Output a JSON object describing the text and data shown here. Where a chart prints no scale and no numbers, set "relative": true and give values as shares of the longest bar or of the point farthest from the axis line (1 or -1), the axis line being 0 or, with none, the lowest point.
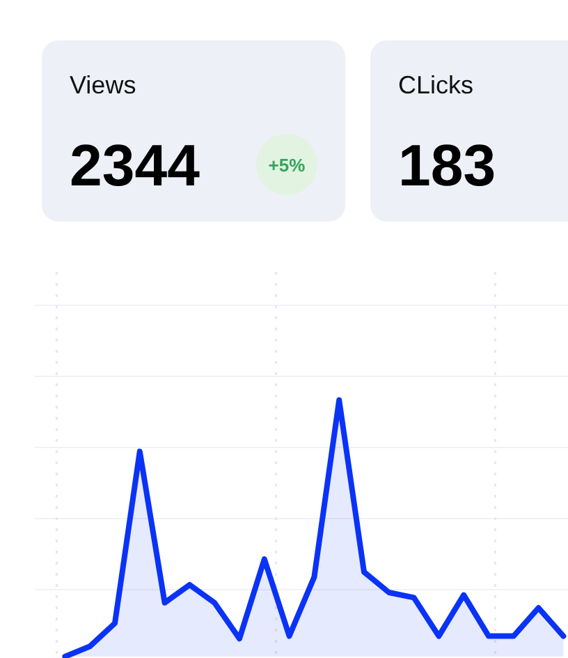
{
  "chart_data": [
    {
      "type": "other",
      "categories": [
        "Views",
        "CLicks"
      ],
      "values": [
        2344,
        183
      ],
      "data_labels": true,
      "annotations": [
        "+5%"
      ]
    },
    {
      "type": "area",
      "relative": true,
      "grid": true,
      "categories": [
        null,
        null,
        null,
        null,
        null,
        null,
        null,
        null,
        null,
        null,
        null,
        null,
        null,
        null,
        null,
        null,
        null,
        null,
        null,
        null,
        null
      ],
      "series": [
        {
          "color": "#0a33f5",
          "values": [
            0,
            0.04,
            0.13,
            0.8,
            0.21,
            0.28,
            0.21,
            0.07,
            0.38,
            0.08,
            0.31,
            1,
            0.33,
            0.25,
            0.23,
            0.08,
            0.24,
            0.08,
            0.08,
            0.19,
            0.08
          ]
        }
      ]
    }
  ]
}
